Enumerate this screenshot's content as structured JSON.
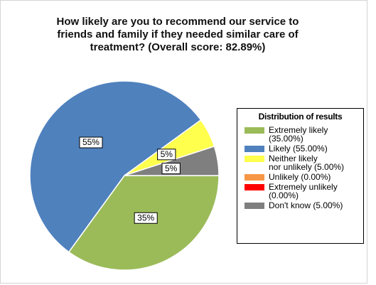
{
  "chart_data": {
    "type": "pie",
    "title": "How likely are you to recommend our service to\nfriends and family if they needed similar care of\ntreatment? (Overall score: 82.89%)",
    "legend_title": "Distribution of results",
    "categories": [
      "Extremely likely\n(35.00%)",
      "Likely (55.00%)",
      "Neither likely\nnor unlikely (5.00%)",
      "Unlikely (0.00%)",
      "Extremely unlikely\n(0.00%)",
      "Don't know (5.00%)"
    ],
    "values": [
      35,
      55,
      5,
      0,
      0,
      5
    ],
    "value_labels": [
      "35%",
      "55%",
      "5%",
      null,
      null,
      "5%"
    ],
    "colors": [
      "#9bbb59",
      "#4f81bd",
      "#ffff4d",
      "#f79646",
      "#ff0000",
      "#7f7f7f"
    ],
    "legend": "right"
  }
}
